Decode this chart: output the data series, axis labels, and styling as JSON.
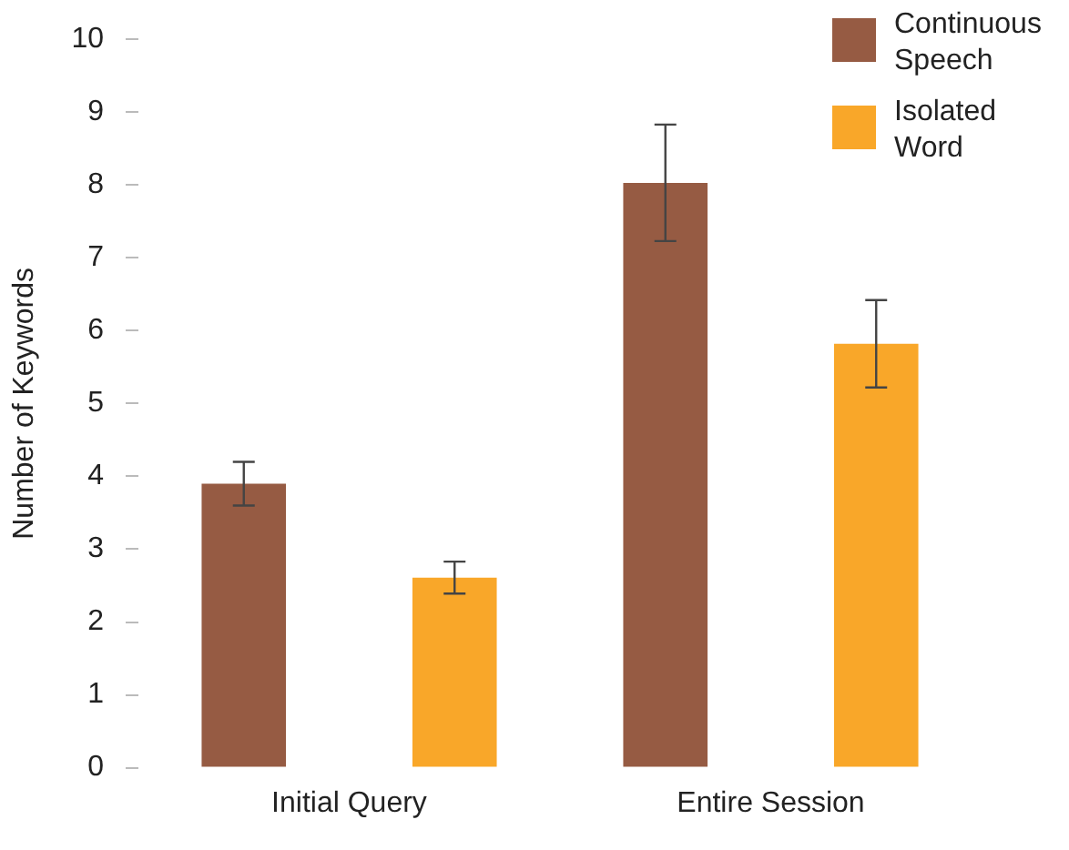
{
  "chart_data": {
    "type": "bar",
    "ylabel": "Number of Keywords",
    "categories": [
      "Initial Query",
      "Entire Session"
    ],
    "series": [
      {
        "name": "Continuous Speech",
        "color": "#965b43",
        "values": [
          3.9,
          8.03
        ],
        "errors": [
          0.3,
          0.8
        ]
      },
      {
        "name": "Isolated Word",
        "color": "#f9a729",
        "values": [
          2.61,
          5.82
        ],
        "errors": [
          0.22,
          0.6
        ]
      }
    ],
    "ylim": [
      0,
      10
    ],
    "yticks": [
      0,
      1,
      2,
      3,
      4,
      5,
      6,
      7,
      8,
      9,
      10
    ],
    "grid": false,
    "legend": "top right"
  }
}
